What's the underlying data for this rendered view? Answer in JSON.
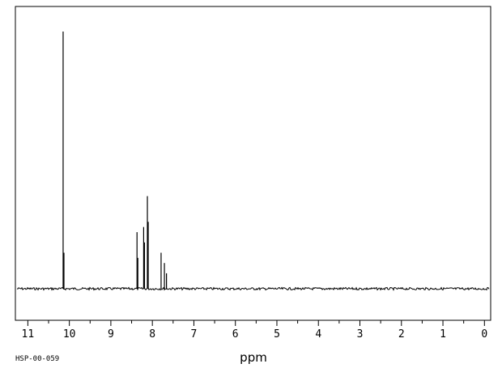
{
  "chart_data": {
    "type": "line",
    "title": "",
    "xlabel": "ppm",
    "ylabel": "",
    "xlim": [
      11.3,
      -0.15
    ],
    "x_reversed": true,
    "grid": false,
    "x_ticks": [
      11,
      10,
      9,
      8,
      7,
      6,
      5,
      4,
      3,
      2,
      1,
      0
    ],
    "x_tick_labels": [
      "11",
      "10",
      "9",
      "8",
      "7",
      "6",
      "5",
      "4",
      "3",
      "2",
      "1",
      "0"
    ],
    "peak_intensity_scale": [
      0,
      100
    ],
    "peaks": [
      {
        "ppm": 10.15,
        "intensity": 100
      },
      {
        "ppm": 10.13,
        "intensity": 14
      },
      {
        "ppm": 8.37,
        "intensity": 22
      },
      {
        "ppm": 8.35,
        "intensity": 12
      },
      {
        "ppm": 8.21,
        "intensity": 24
      },
      {
        "ppm": 8.19,
        "intensity": 18
      },
      {
        "ppm": 8.12,
        "intensity": 36
      },
      {
        "ppm": 8.1,
        "intensity": 26
      },
      {
        "ppm": 7.79,
        "intensity": 14
      },
      {
        "ppm": 7.71,
        "intensity": 10
      },
      {
        "ppm": 7.66,
        "intensity": 6
      }
    ],
    "line_color": "#000000"
  },
  "footer": {
    "spectrum_id": "HSP-00-059"
  }
}
